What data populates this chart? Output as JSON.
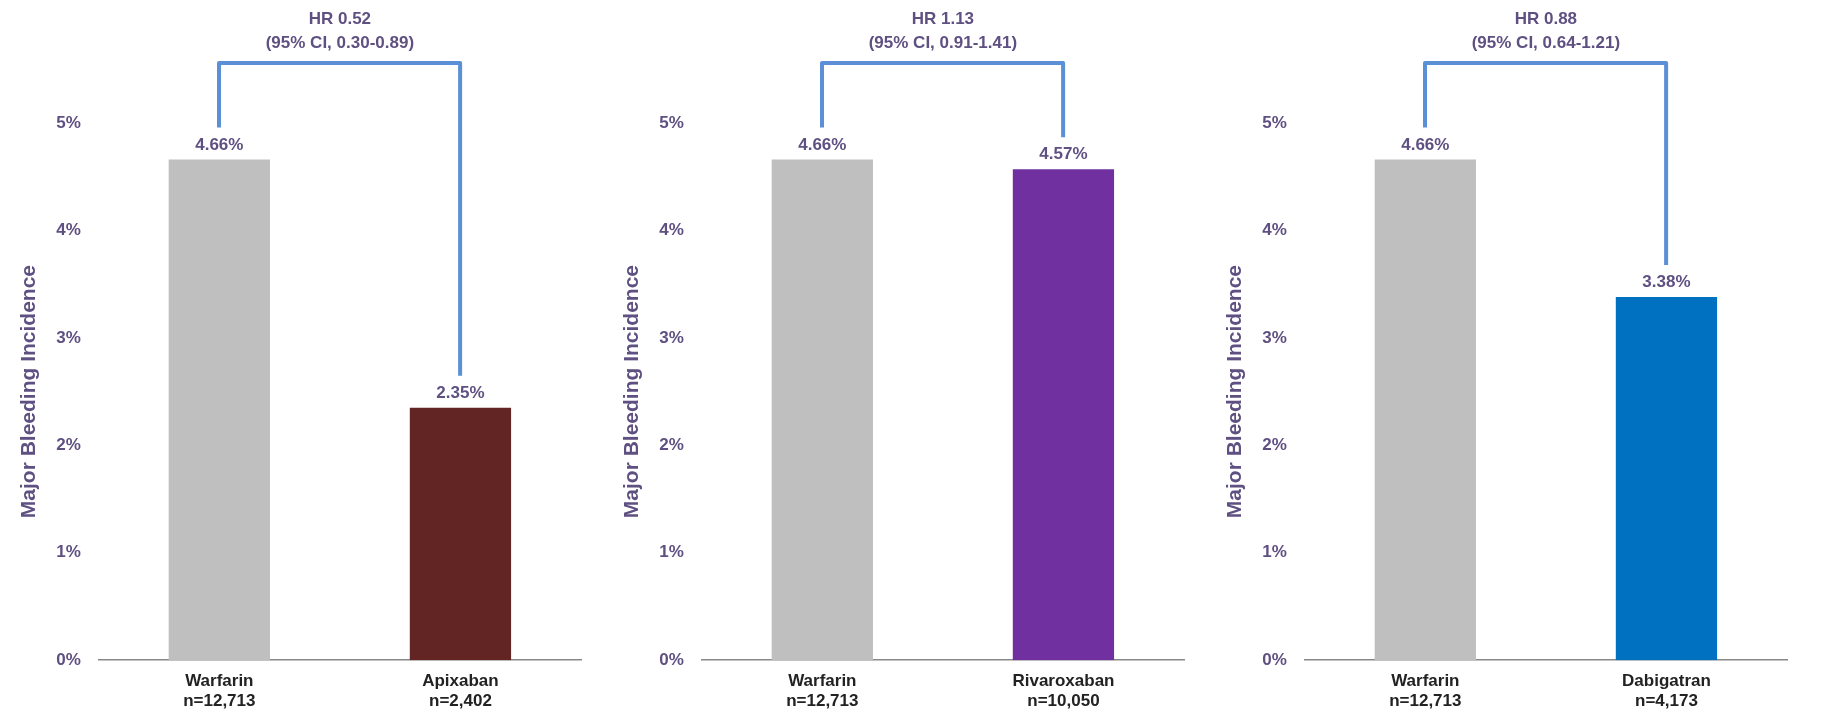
{
  "chart_data": [
    {
      "type": "bar",
      "ylabel": "Major Bleeding Incidence",
      "categories": [
        "Warfarin\nn=12,713",
        "Apixaban\nn=2,402"
      ],
      "values": [
        4.66,
        2.35
      ],
      "colors": [
        "#bfbfbf",
        "#632523"
      ],
      "value_labels": [
        "4.66%",
        "2.35%"
      ],
      "ylim": [
        0,
        5
      ],
      "yticks": [
        {
          "value": 0,
          "label": "0%"
        },
        {
          "value": 1,
          "label": "1%"
        },
        {
          "value": 2,
          "label": "2%"
        },
        {
          "value": 3,
          "label": "3%"
        },
        {
          "value": 4,
          "label": "4%"
        },
        {
          "value": 5,
          "label": "5%"
        }
      ],
      "annotations": [
        "HR 0.52\n(95% CI, 0.30-0.89)"
      ]
    },
    {
      "type": "bar",
      "ylabel": "Major Bleeding Incidence",
      "categories": [
        "Warfarin\nn=12,713",
        "Rivaroxaban\nn=10,050"
      ],
      "values": [
        4.66,
        4.57
      ],
      "colors": [
        "#bfbfbf",
        "#7030a0"
      ],
      "value_labels": [
        "4.66%",
        "4.57%"
      ],
      "ylim": [
        0,
        5
      ],
      "yticks": [
        {
          "value": 0,
          "label": "0%"
        },
        {
          "value": 1,
          "label": "1%"
        },
        {
          "value": 2,
          "label": "2%"
        },
        {
          "value": 3,
          "label": "3%"
        },
        {
          "value": 4,
          "label": "4%"
        },
        {
          "value": 5,
          "label": "5%"
        }
      ],
      "annotations": [
        "HR 1.13\n(95% CI, 0.91-1.41)"
      ]
    },
    {
      "type": "bar",
      "ylabel": "Major Bleeding Incidence",
      "categories": [
        "Warfarin\nn=12,713",
        "Dabigatran\nn=4,173"
      ],
      "values": [
        4.66,
        3.38
      ],
      "colors": [
        "#bfbfbf",
        "#0070c0"
      ],
      "value_labels": [
        "4.66%",
        "3.38%"
      ],
      "ylim": [
        0,
        5
      ],
      "yticks": [
        {
          "value": 0,
          "label": "0%"
        },
        {
          "value": 1,
          "label": "1%"
        },
        {
          "value": 2,
          "label": "2%"
        },
        {
          "value": 3,
          "label": "3%"
        },
        {
          "value": 4,
          "label": "4%"
        },
        {
          "value": 5,
          "label": "5%"
        }
      ],
      "annotations": [
        "HR 0.88\n(95% CI, 0.64-1.21)"
      ]
    }
  ]
}
